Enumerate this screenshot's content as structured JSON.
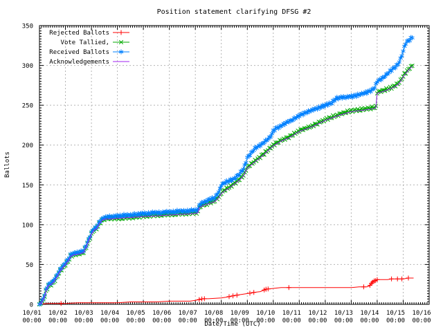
{
  "title": "Position statement clarifying DFSG #2",
  "axes": {
    "y_label": "Ballots",
    "x_label": "Date/Time (UTC)",
    "y_ticks": [
      0,
      50,
      100,
      150,
      200,
      250,
      300,
      350
    ],
    "x_ticks": [
      {
        "date": "10/01",
        "time": "00:00"
      },
      {
        "date": "10/02",
        "time": "00:00"
      },
      {
        "date": "10/03",
        "time": "00:00"
      },
      {
        "date": "10/04",
        "time": "00:00"
      },
      {
        "date": "10/05",
        "time": "00:00"
      },
      {
        "date": "10/06",
        "time": "00:00"
      },
      {
        "date": "10/07",
        "time": "00:00"
      },
      {
        "date": "10/08",
        "time": "00:00"
      },
      {
        "date": "10/09",
        "time": "00:00"
      },
      {
        "date": "10/10",
        "time": "00:00"
      },
      {
        "date": "10/11",
        "time": "00:00"
      },
      {
        "date": "10/12",
        "time": "00:00"
      },
      {
        "date": "10/13",
        "time": "00:00"
      },
      {
        "date": "10/14",
        "time": "00:00"
      },
      {
        "date": "10/15",
        "time": "00:00"
      },
      {
        "date": "10/16",
        "time": "00:00"
      }
    ]
  },
  "legend": {
    "entries": [
      {
        "label": "Rejected Ballots",
        "color": "#ff0000",
        "marker": "plus"
      },
      {
        "label": "Vote Tallied,",
        "color": "#00a800",
        "marker": "cross"
      },
      {
        "label": "Received Ballots",
        "color": "#0080ff",
        "marker": "star"
      },
      {
        "label": "Acknowledgements",
        "color": "#a020f0",
        "marker": "none"
      }
    ]
  },
  "colors": {
    "grid": "#b4b4b4",
    "border": "#000000",
    "background": "#ffffff"
  },
  "chart_data": {
    "type": "line",
    "title": "Position statement clarifying DFSG #2",
    "xlabel": "Date/Time (UTC)",
    "ylabel": "Ballots",
    "ylim": [
      0,
      350
    ],
    "xlim_days": [
      0,
      15
    ],
    "x_unit": "days since 10/01 00:00 UTC",
    "grid": true,
    "legend_position": "top-left-inside",
    "series": [
      {
        "name": "Rejected Ballots",
        "color": "#ff0000",
        "marker": "plus",
        "marker_mode": "sparse",
        "points": [
          [
            0,
            0
          ],
          [
            0.3,
            1
          ],
          [
            1.0,
            1
          ],
          [
            1.5,
            2
          ],
          [
            3.0,
            2
          ],
          [
            3.5,
            3
          ],
          [
            4.5,
            3
          ],
          [
            5.0,
            4
          ],
          [
            5.8,
            4
          ],
          [
            6.0,
            5
          ],
          [
            6.15,
            6
          ],
          [
            6.3,
            7
          ],
          [
            6.5,
            7
          ],
          [
            7.0,
            8
          ],
          [
            7.2,
            9
          ],
          [
            7.35,
            10
          ],
          [
            7.5,
            11
          ],
          [
            7.9,
            13
          ],
          [
            8.1,
            14
          ],
          [
            8.25,
            15
          ],
          [
            8.5,
            16
          ],
          [
            8.65,
            18
          ],
          [
            8.72,
            19
          ],
          [
            9.0,
            20
          ],
          [
            9.3,
            21
          ],
          [
            12.0,
            21
          ],
          [
            12.3,
            22
          ],
          [
            12.6,
            22
          ],
          [
            12.7,
            23
          ],
          [
            12.75,
            25
          ],
          [
            12.8,
            27
          ],
          [
            12.85,
            29
          ],
          [
            12.95,
            30
          ],
          [
            13.0,
            31
          ],
          [
            13.4,
            31
          ],
          [
            13.55,
            32
          ],
          [
            14.0,
            32
          ],
          [
            14.2,
            33
          ],
          [
            14.4,
            33
          ]
        ],
        "marker_days": [
          0.83,
          6.15,
          6.25,
          6.35,
          7.3,
          7.45,
          7.6,
          8.1,
          8.25,
          8.65,
          8.72,
          8.8,
          9.6,
          12.48,
          12.72,
          12.78,
          12.82,
          12.88,
          12.93,
          13.0,
          13.55,
          13.78,
          13.95,
          14.2
        ]
      },
      {
        "name": "Vote Tallied,",
        "color": "#00a800",
        "marker": "cross",
        "marker_mode": "dense",
        "points": [
          [
            0,
            0
          ],
          [
            0.1,
            3
          ],
          [
            0.2,
            10
          ],
          [
            0.27,
            18
          ],
          [
            0.33,
            23
          ],
          [
            0.45,
            25
          ],
          [
            0.55,
            28
          ],
          [
            0.65,
            33
          ],
          [
            0.75,
            39
          ],
          [
            0.85,
            44
          ],
          [
            0.95,
            48
          ],
          [
            1.0,
            50
          ],
          [
            1.1,
            54
          ],
          [
            1.2,
            60
          ],
          [
            1.3,
            62
          ],
          [
            1.5,
            63
          ],
          [
            1.7,
            65
          ],
          [
            1.8,
            72
          ],
          [
            1.9,
            80
          ],
          [
            2.0,
            88
          ],
          [
            2.1,
            93
          ],
          [
            2.2,
            95
          ],
          [
            2.3,
            101
          ],
          [
            2.4,
            105
          ],
          [
            2.5,
            107
          ],
          [
            2.7,
            108
          ],
          [
            3.0,
            108
          ],
          [
            3.5,
            109
          ],
          [
            4.0,
            111
          ],
          [
            4.5,
            112
          ],
          [
            5.0,
            113
          ],
          [
            5.5,
            114
          ],
          [
            6.0,
            115
          ],
          [
            6.1,
            116
          ],
          [
            6.15,
            122
          ],
          [
            6.3,
            125
          ],
          [
            6.5,
            127
          ],
          [
            6.75,
            130
          ],
          [
            6.9,
            135
          ],
          [
            7.0,
            140
          ],
          [
            7.15,
            144
          ],
          [
            7.3,
            147
          ],
          [
            7.5,
            152
          ],
          [
            7.7,
            157
          ],
          [
            7.85,
            162
          ],
          [
            8.0,
            172
          ],
          [
            8.3,
            180
          ],
          [
            8.6,
            188
          ],
          [
            8.8,
            194
          ],
          [
            9.0,
            200
          ],
          [
            9.3,
            206
          ],
          [
            9.6,
            210
          ],
          [
            10.0,
            218
          ],
          [
            10.5,
            224
          ],
          [
            11.0,
            232
          ],
          [
            11.5,
            238
          ],
          [
            12.0,
            243
          ],
          [
            12.5,
            245
          ],
          [
            12.9,
            247
          ],
          [
            12.95,
            248
          ],
          [
            13.0,
            266
          ],
          [
            13.3,
            269
          ],
          [
            13.6,
            273
          ],
          [
            13.8,
            277
          ],
          [
            13.9,
            281
          ],
          [
            14.05,
            289
          ],
          [
            14.2,
            295
          ],
          [
            14.35,
            300
          ]
        ]
      },
      {
        "name": "Received Ballots",
        "color": "#0080ff",
        "marker": "star",
        "marker_mode": "dense",
        "points": [
          [
            0,
            0
          ],
          [
            0.1,
            4
          ],
          [
            0.2,
            12
          ],
          [
            0.27,
            20
          ],
          [
            0.33,
            25
          ],
          [
            0.45,
            27
          ],
          [
            0.55,
            30
          ],
          [
            0.65,
            35
          ],
          [
            0.75,
            41
          ],
          [
            0.85,
            46
          ],
          [
            0.95,
            50
          ],
          [
            1.0,
            52
          ],
          [
            1.1,
            56
          ],
          [
            1.2,
            62
          ],
          [
            1.3,
            64
          ],
          [
            1.5,
            65
          ],
          [
            1.7,
            67
          ],
          [
            1.8,
            74
          ],
          [
            1.9,
            82
          ],
          [
            2.0,
            90
          ],
          [
            2.1,
            95
          ],
          [
            2.2,
            97
          ],
          [
            2.3,
            103
          ],
          [
            2.4,
            107
          ],
          [
            2.5,
            109
          ],
          [
            2.7,
            110
          ],
          [
            3.0,
            111
          ],
          [
            3.5,
            112
          ],
          [
            4.0,
            114
          ],
          [
            4.5,
            115
          ],
          [
            5.0,
            116
          ],
          [
            5.5,
            117
          ],
          [
            6.0,
            118
          ],
          [
            6.1,
            119
          ],
          [
            6.15,
            125
          ],
          [
            6.3,
            128
          ],
          [
            6.5,
            131
          ],
          [
            6.75,
            134
          ],
          [
            6.9,
            141
          ],
          [
            7.0,
            150
          ],
          [
            7.15,
            153
          ],
          [
            7.3,
            155
          ],
          [
            7.5,
            158
          ],
          [
            7.7,
            164
          ],
          [
            7.85,
            170
          ],
          [
            7.95,
            179
          ],
          [
            8.0,
            184
          ],
          [
            8.15,
            190
          ],
          [
            8.3,
            196
          ],
          [
            8.5,
            200
          ],
          [
            8.7,
            205
          ],
          [
            8.85,
            209
          ],
          [
            8.95,
            214
          ],
          [
            9.0,
            218
          ],
          [
            9.1,
            221
          ],
          [
            9.3,
            224
          ],
          [
            9.5,
            228
          ],
          [
            9.7,
            231
          ],
          [
            9.85,
            234
          ],
          [
            10.0,
            237
          ],
          [
            10.2,
            240
          ],
          [
            10.5,
            244
          ],
          [
            10.7,
            246
          ],
          [
            11.0,
            250
          ],
          [
            11.2,
            252
          ],
          [
            11.45,
            259
          ],
          [
            12.0,
            261
          ],
          [
            12.3,
            263
          ],
          [
            12.6,
            266
          ],
          [
            12.8,
            269
          ],
          [
            12.9,
            272
          ],
          [
            13.0,
            280
          ],
          [
            13.2,
            284
          ],
          [
            13.35,
            288
          ],
          [
            13.5,
            293
          ],
          [
            13.7,
            298
          ],
          [
            13.8,
            301
          ],
          [
            13.9,
            308
          ],
          [
            14.0,
            318
          ],
          [
            14.1,
            328
          ],
          [
            14.2,
            331
          ],
          [
            14.35,
            335
          ]
        ]
      },
      {
        "name": "Acknowledgements",
        "color": "#a020f0",
        "marker": "none",
        "marker_mode": "none",
        "points": [
          [
            0,
            0
          ],
          [
            0.1,
            3
          ],
          [
            0.2,
            10
          ],
          [
            0.27,
            18
          ],
          [
            0.33,
            23
          ],
          [
            0.45,
            25
          ],
          [
            0.55,
            28
          ],
          [
            0.65,
            33
          ],
          [
            0.75,
            39
          ],
          [
            0.85,
            44
          ],
          [
            0.95,
            48
          ],
          [
            1.0,
            50
          ],
          [
            1.1,
            54
          ],
          [
            1.2,
            60
          ],
          [
            1.3,
            62
          ],
          [
            1.5,
            63
          ],
          [
            1.7,
            65
          ],
          [
            1.8,
            72
          ],
          [
            1.9,
            80
          ],
          [
            2.0,
            88
          ],
          [
            2.1,
            93
          ],
          [
            2.2,
            95
          ],
          [
            2.3,
            101
          ],
          [
            2.4,
            105
          ],
          [
            2.5,
            107
          ],
          [
            2.7,
            107
          ],
          [
            3.0,
            108
          ],
          [
            3.5,
            109
          ],
          [
            4.0,
            110
          ],
          [
            4.5,
            111
          ],
          [
            5.0,
            112
          ],
          [
            5.5,
            113
          ],
          [
            6.0,
            114
          ],
          [
            6.1,
            115
          ],
          [
            6.15,
            121
          ],
          [
            6.3,
            124
          ],
          [
            6.5,
            126
          ],
          [
            6.75,
            129
          ],
          [
            6.9,
            134
          ],
          [
            7.0,
            139
          ],
          [
            7.15,
            143
          ],
          [
            7.3,
            146
          ],
          [
            7.5,
            151
          ],
          [
            7.7,
            156
          ],
          [
            7.85,
            161
          ],
          [
            8.0,
            171
          ],
          [
            8.3,
            179
          ],
          [
            8.6,
            187
          ],
          [
            8.8,
            193
          ],
          [
            9.0,
            199
          ],
          [
            9.3,
            205
          ],
          [
            9.6,
            209
          ],
          [
            10.0,
            217
          ],
          [
            10.5,
            223
          ],
          [
            11.0,
            231
          ],
          [
            11.5,
            237
          ],
          [
            12.0,
            242
          ],
          [
            12.5,
            244
          ],
          [
            12.9,
            246
          ],
          [
            12.95,
            247
          ],
          [
            13.0,
            265
          ],
          [
            13.3,
            268
          ],
          [
            13.6,
            272
          ],
          [
            13.8,
            276
          ],
          [
            13.9,
            280
          ],
          [
            14.05,
            288
          ],
          [
            14.2,
            294
          ],
          [
            14.35,
            299
          ]
        ]
      }
    ]
  }
}
